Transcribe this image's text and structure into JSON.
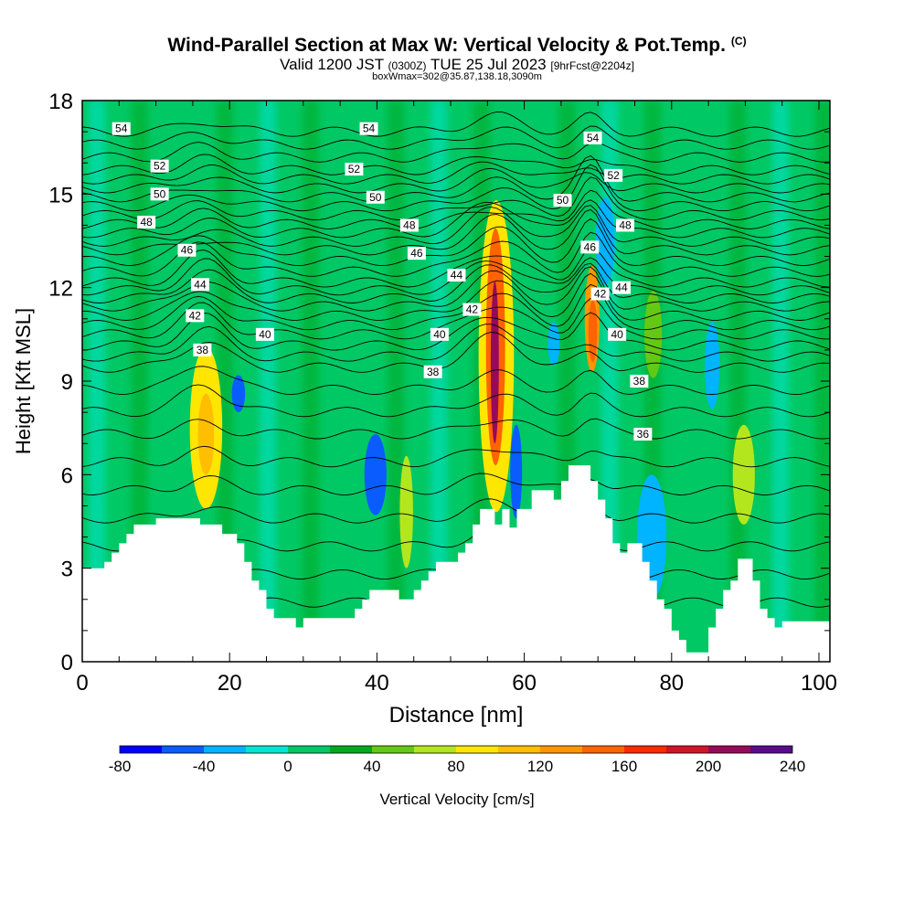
{
  "title": "Wind-Parallel Section at Max W: Vertical Velocity & Pot.Temp.",
  "copyright_mark": "(C)",
  "subtitle": {
    "valid": "Valid 1200 JST",
    "utc": "(0300Z)",
    "date": "TUE 25 Jul 2023",
    "forecast": "[9hrFcst@2204z]"
  },
  "subnote": "boxWmax=302@35.87,138.18,3090m",
  "chart_data": {
    "type": "heatmap",
    "title": "Wind-Parallel Section at Max W: Vertical Velocity & Pot.Temp.",
    "xlabel": "Distance [nm]",
    "ylabel": "Height [Kft MSL]",
    "xlim": [
      0,
      102
    ],
    "ylim": [
      0,
      18
    ],
    "x_ticks": [
      0,
      20,
      40,
      60,
      80,
      100
    ],
    "y_ticks": [
      0,
      3,
      6,
      9,
      12,
      15,
      18
    ],
    "colorbar": {
      "label": "Vertical Velocity [cm/s]",
      "ticks": [
        -80,
        -40,
        0,
        40,
        80,
        120,
        160,
        200,
        240
      ],
      "bounds": [
        -80,
        -60,
        -40,
        -20,
        0,
        20,
        40,
        60,
        80,
        100,
        120,
        140,
        160,
        180,
        200,
        220,
        240
      ],
      "colors": [
        "#0000ff",
        "#0a5cff",
        "#00b4ff",
        "#00e6d2",
        "#00c864",
        "#00a81e",
        "#64c814",
        "#b4e61e",
        "#ffe600",
        "#ffbe00",
        "#ff9600",
        "#ff6400",
        "#ff2a00",
        "#d21428",
        "#960a5a",
        "#5a0a8c"
      ]
    },
    "terrain_kft": [
      [
        0,
        3
      ],
      [
        3,
        3
      ],
      [
        3,
        3.2
      ],
      [
        4,
        3.2
      ],
      [
        4,
        3.5
      ],
      [
        5,
        3.5
      ],
      [
        5,
        3.8
      ],
      [
        6,
        3.8
      ],
      [
        6,
        4.1
      ],
      [
        7,
        4.1
      ],
      [
        7,
        4.4
      ],
      [
        10,
        4.4
      ],
      [
        10,
        4.6
      ],
      [
        16,
        4.6
      ],
      [
        16,
        4.4
      ],
      [
        19,
        4.4
      ],
      [
        19,
        4.1
      ],
      [
        21,
        4.1
      ],
      [
        21,
        3.8
      ],
      [
        22,
        3.8
      ],
      [
        22,
        3.2
      ],
      [
        23,
        3.2
      ],
      [
        23,
        2.6
      ],
      [
        24,
        2.6
      ],
      [
        24,
        2.3
      ],
      [
        25,
        2.3
      ],
      [
        25,
        1.7
      ],
      [
        26,
        1.7
      ],
      [
        26,
        1.4
      ],
      [
        29,
        1.4
      ],
      [
        29,
        1.1
      ],
      [
        30,
        1.1
      ],
      [
        30,
        1.4
      ],
      [
        37,
        1.4
      ],
      [
        37,
        1.7
      ],
      [
        38,
        1.7
      ],
      [
        38,
        2
      ],
      [
        39,
        2
      ],
      [
        39,
        2.3
      ],
      [
        43,
        2.3
      ],
      [
        43,
        2
      ],
      [
        45,
        2
      ],
      [
        45,
        2.3
      ],
      [
        46,
        2.3
      ],
      [
        46,
        2.6
      ],
      [
        47,
        2.6
      ],
      [
        47,
        2.9
      ],
      [
        48,
        2.9
      ],
      [
        48,
        3.2
      ],
      [
        51,
        3.2
      ],
      [
        51,
        3.5
      ],
      [
        52,
        3.5
      ],
      [
        52,
        3.8
      ],
      [
        53,
        3.8
      ],
      [
        53,
        4.4
      ],
      [
        54,
        4.4
      ],
      [
        54,
        4.9
      ],
      [
        56,
        4.9
      ],
      [
        56,
        4.4
      ],
      [
        57,
        4.4
      ],
      [
        57,
        4.9
      ],
      [
        58,
        4.9
      ],
      [
        58,
        4.3
      ],
      [
        59,
        4.3
      ],
      [
        59,
        4.9
      ],
      [
        61,
        4.9
      ],
      [
        61,
        5.5
      ],
      [
        64,
        5.5
      ],
      [
        64,
        5.2
      ],
      [
        65,
        5.2
      ],
      [
        65,
        5.8
      ],
      [
        66,
        5.8
      ],
      [
        66,
        6.3
      ],
      [
        69,
        6.3
      ],
      [
        69,
        5.8
      ],
      [
        70,
        5.8
      ],
      [
        70,
        5.2
      ],
      [
        71,
        5.2
      ],
      [
        71,
        4.6
      ],
      [
        72,
        4.6
      ],
      [
        72,
        3.8
      ],
      [
        73,
        3.8
      ],
      [
        73,
        3.5
      ],
      [
        74,
        3.5
      ],
      [
        74,
        3.8
      ],
      [
        76,
        3.8
      ],
      [
        76,
        3.2
      ],
      [
        77,
        3.2
      ],
      [
        77,
        2.6
      ],
      [
        78,
        2.6
      ],
      [
        78,
        2
      ],
      [
        79,
        2
      ],
      [
        79,
        1.7
      ],
      [
        80,
        1.7
      ],
      [
        80,
        1
      ],
      [
        81,
        1
      ],
      [
        81,
        0.7
      ],
      [
        82,
        0.7
      ],
      [
        82,
        0.3
      ],
      [
        85,
        0.3
      ],
      [
        85,
        1.1
      ],
      [
        86,
        1.1
      ],
      [
        86,
        1.7
      ],
      [
        87,
        1.7
      ],
      [
        87,
        2.3
      ],
      [
        88,
        2.3
      ],
      [
        88,
        2.6
      ],
      [
        89,
        2.6
      ],
      [
        89,
        3.3
      ],
      [
        91,
        3.3
      ],
      [
        91,
        2.6
      ],
      [
        92,
        2.6
      ],
      [
        92,
        1.7
      ],
      [
        93,
        1.7
      ],
      [
        93,
        1.4
      ],
      [
        94,
        1.4
      ],
      [
        94,
        1.1
      ],
      [
        95,
        1.1
      ],
      [
        95,
        1.3
      ],
      [
        102,
        1.3
      ]
    ],
    "w_blobs": [
      {
        "x": 16.8,
        "y": 7.5,
        "rx": 2.2,
        "ry": 2.6,
        "w": 90
      },
      {
        "x": 16.8,
        "y": 7.3,
        "rx": 1.1,
        "ry": 1.3,
        "w": 110
      },
      {
        "x": 21.2,
        "y": 8.6,
        "rx": 0.9,
        "ry": 0.6,
        "w": -45
      },
      {
        "x": 39.8,
        "y": 6.0,
        "rx": 1.5,
        "ry": 1.3,
        "w": -60
      },
      {
        "x": 44.0,
        "y": 4.8,
        "rx": 0.9,
        "ry": 1.8,
        "w": 70
      },
      {
        "x": 56.2,
        "y": 9.8,
        "rx": 2.4,
        "ry": 5.0,
        "w": 80
      },
      {
        "x": 56.1,
        "y": 10.1,
        "rx": 1.3,
        "ry": 3.8,
        "w": 140
      },
      {
        "x": 56.0,
        "y": 9.6,
        "rx": 0.55,
        "ry": 2.6,
        "w": 200
      },
      {
        "x": 58.9,
        "y": 6.1,
        "rx": 0.8,
        "ry": 1.5,
        "w": -55
      },
      {
        "x": 64.0,
        "y": 10.2,
        "rx": 0.8,
        "ry": 0.7,
        "w": -35
      },
      {
        "x": 69.2,
        "y": 11.0,
        "rx": 1.0,
        "ry": 1.7,
        "w": 120
      },
      {
        "x": 69.3,
        "y": 10.6,
        "rx": 0.6,
        "ry": 1.0,
        "w": 150
      },
      {
        "x": 71.0,
        "y": 13.5,
        "rx": 1.3,
        "ry": 1.4,
        "w": -40
      },
      {
        "x": 77.5,
        "y": 10.5,
        "rx": 1.2,
        "ry": 1.4,
        "w": 40
      },
      {
        "x": 77.3,
        "y": 4.0,
        "rx": 2.0,
        "ry": 2.0,
        "w": -30
      },
      {
        "x": 89.8,
        "y": 6.0,
        "rx": 1.5,
        "ry": 1.6,
        "w": 70
      },
      {
        "x": 85.5,
        "y": 9.5,
        "rx": 1.0,
        "ry": 1.4,
        "w": -25
      }
    ],
    "theta_labels": [
      {
        "x": 5.3,
        "y": 17.1,
        "text": "54"
      },
      {
        "x": 38.9,
        "y": 17.1,
        "text": "54"
      },
      {
        "x": 69.3,
        "y": 16.8,
        "text": "54"
      },
      {
        "x": 10.5,
        "y": 15.9,
        "text": "52"
      },
      {
        "x": 36.9,
        "y": 15.8,
        "text": "52"
      },
      {
        "x": 72.1,
        "y": 15.6,
        "text": "52"
      },
      {
        "x": 10.5,
        "y": 15.0,
        "text": "50"
      },
      {
        "x": 39.8,
        "y": 14.9,
        "text": "50"
      },
      {
        "x": 65.2,
        "y": 14.8,
        "text": "50"
      },
      {
        "x": 8.7,
        "y": 14.1,
        "text": "48"
      },
      {
        "x": 44.4,
        "y": 14.0,
        "text": "48"
      },
      {
        "x": 73.7,
        "y": 14.0,
        "text": "48"
      },
      {
        "x": 14.2,
        "y": 13.2,
        "text": "46"
      },
      {
        "x": 45.4,
        "y": 13.1,
        "text": "46"
      },
      {
        "x": 68.9,
        "y": 13.3,
        "text": "46"
      },
      {
        "x": 16.0,
        "y": 12.1,
        "text": "44"
      },
      {
        "x": 50.8,
        "y": 12.4,
        "text": "44"
      },
      {
        "x": 73.2,
        "y": 12.0,
        "text": "44"
      },
      {
        "x": 15.3,
        "y": 11.1,
        "text": "42"
      },
      {
        "x": 52.9,
        "y": 11.3,
        "text": "42"
      },
      {
        "x": 70.3,
        "y": 11.8,
        "text": "42"
      },
      {
        "x": 24.8,
        "y": 10.5,
        "text": "40"
      },
      {
        "x": 48.5,
        "y": 10.5,
        "text": "40"
      },
      {
        "x": 72.6,
        "y": 10.5,
        "text": "40"
      },
      {
        "x": 16.3,
        "y": 10.0,
        "text": "38"
      },
      {
        "x": 47.6,
        "y": 9.3,
        "text": "38"
      },
      {
        "x": 75.6,
        "y": 9.0,
        "text": "38"
      },
      {
        "x": 76.1,
        "y": 7.3,
        "text": "36"
      }
    ]
  }
}
